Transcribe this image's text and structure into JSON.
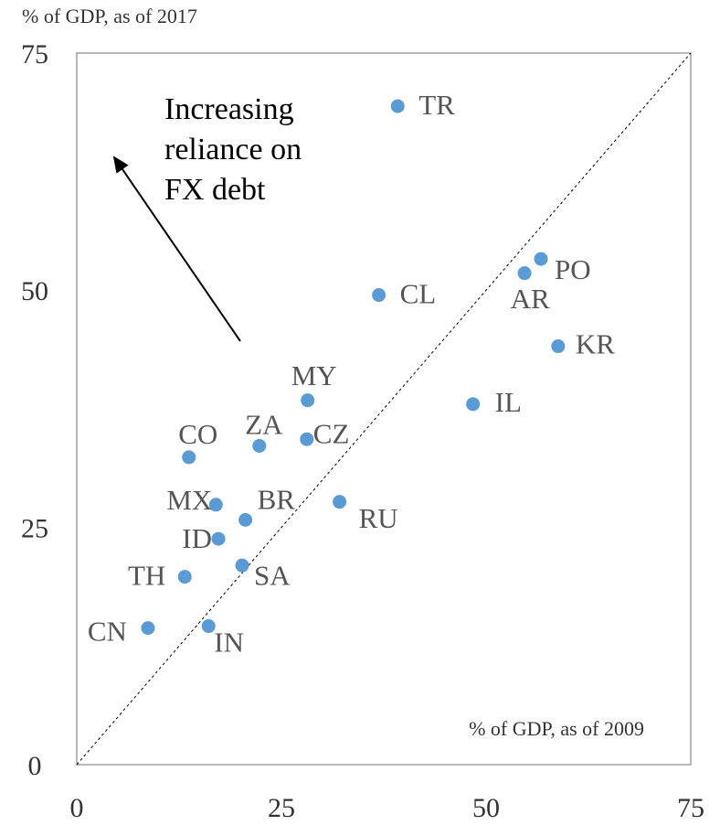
{
  "chart_data": {
    "type": "scatter",
    "title": "% of GDP, as of 2017",
    "xlabel": "% of GDP, as of 2009",
    "annotation": [
      "Increasing",
      "reliance on",
      "FX debt"
    ],
    "point_labels": [
      "TR",
      "PO",
      "AR",
      "CL",
      "KR",
      "IL",
      "MY",
      "CZ",
      "ZA",
      "CO",
      "MX",
      "BR",
      "RU",
      "ID",
      "SA",
      "TH",
      "CN",
      "IN"
    ],
    "x": [
      39.2,
      56.7,
      54.7,
      36.9,
      58.8,
      48.4,
      28.2,
      28.1,
      22.3,
      13.7,
      17.0,
      20.6,
      32.1,
      17.3,
      20.2,
      13.2,
      8.7,
      16.1
    ],
    "values": [
      69.4,
      53.3,
      51.8,
      49.5,
      44.1,
      38.0,
      38.4,
      34.3,
      33.6,
      32.4,
      27.4,
      25.8,
      27.7,
      23.8,
      21.0,
      19.8,
      14.4,
      14.6
    ],
    "color": "#5b9bd5",
    "xlim": [
      0,
      75
    ],
    "ylim": [
      0,
      75
    ],
    "xticks": [
      0,
      25,
      50,
      75
    ],
    "yticks": [
      0,
      25,
      50,
      75
    ]
  }
}
